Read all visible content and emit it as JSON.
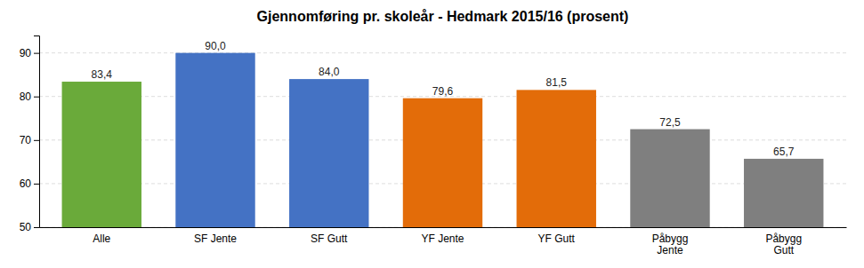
{
  "chart_data": {
    "type": "bar",
    "title": "Gjennomføring pr. skoleår - Hedmark 2015/16 (prosent)",
    "categories": [
      "Alle",
      "SF Jente",
      "SF Gutt",
      "YF Jente",
      "YF Gutt",
      "Påbygg\nJente",
      "Påbygg\nGutt"
    ],
    "values": [
      83.4,
      90.0,
      84.0,
      79.6,
      81.5,
      72.5,
      65.7
    ],
    "value_labels": [
      "83,4",
      "90,0",
      "84,0",
      "79,6",
      "81,5",
      "72,5",
      "65,7"
    ],
    "colors": [
      "#6aaa3a",
      "#4472c4",
      "#4472c4",
      "#e36c09",
      "#e36c09",
      "#7f7f7f",
      "#7f7f7f"
    ],
    "ylim": [
      50,
      94
    ],
    "yticks": [
      50,
      60,
      70,
      80,
      90
    ],
    "grid": true,
    "data_labels": true
  }
}
